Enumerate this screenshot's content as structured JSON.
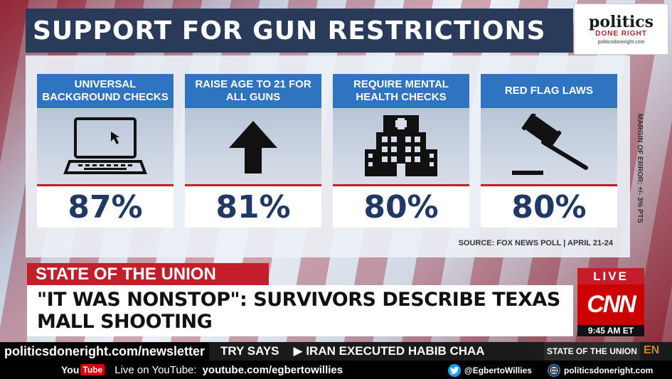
{
  "header": {
    "title": "SUPPORT FOR GUN RESTRICTIONS"
  },
  "logo": {
    "line1": "politics",
    "line2": "DONE RIGHT",
    "line3": "politicsdoneright.com"
  },
  "cards": [
    {
      "title": "UNIVERSAL BACKGROUND CHECKS",
      "value": "87%",
      "icon": "laptop-icon"
    },
    {
      "title": "RAISE AGE TO 21 FOR ALL GUNS",
      "value": "81%",
      "icon": "arrow-up-icon"
    },
    {
      "title": "REQUIRE MENTAL HEALTH CHECKS",
      "value": "80%",
      "icon": "hospital-icon"
    },
    {
      "title": "RED FLAG LAWS",
      "value": "80%",
      "icon": "gavel-icon"
    }
  ],
  "source": "SOURCE: FOX NEWS POLL | APRIL 21-24",
  "margin_of_error": "MARGIN OF ERROR: +/- 3% PTS",
  "show_name": "STATE OF THE UNION",
  "headline": "\"IT WAS NONSTOP\": SURVIVORS DESCRIBE TEXAS MALL SHOOTING",
  "live_label": "LIVE",
  "network": "CNN",
  "time": "9:45 AM ET",
  "ticker": {
    "item1": "TRY SAYS",
    "item2": "▶  IRAN EXECUTED HABIB CHAA",
    "label": "STATE OF THE UNION",
    "corner": "EN"
  },
  "newsletter": "politicsdoneright.com/newsletter",
  "bottom_bar": {
    "you": "You",
    "tube": "Tube",
    "live_text": "Live on YouTube:",
    "youtube_url": "youtube.com/egbertowillies",
    "twitter": "@EgbertoWillies",
    "website": "politicsdoneright.com"
  },
  "colors": {
    "header": "#2a3a59",
    "card_title": "#2f74c0",
    "accent_red": "#c41e2a",
    "value": "#1f3864"
  }
}
